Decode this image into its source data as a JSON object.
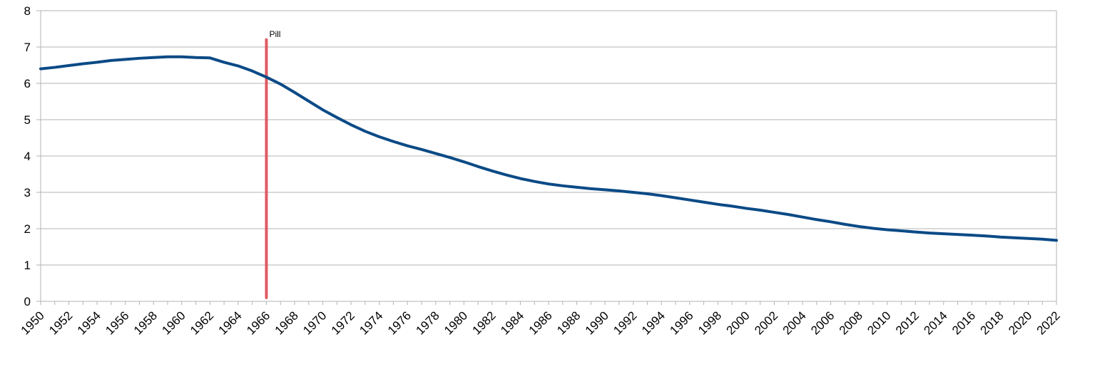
{
  "chart_data": {
    "type": "line",
    "title": "",
    "xlabel": "",
    "ylabel": "",
    "xlim": [
      1950,
      2022
    ],
    "ylim": [
      0,
      8
    ],
    "grid": true,
    "legend": "none",
    "x_tick_labels": [
      "1950",
      "1952",
      "1954",
      "1956",
      "1958",
      "1960",
      "1962",
      "1964",
      "1966",
      "1968",
      "1970",
      "1972",
      "1974",
      "1976",
      "1978",
      "1980",
      "1982",
      "1984",
      "1986",
      "1988",
      "1990",
      "1992",
      "1994",
      "1996",
      "1998",
      "2000",
      "2002",
      "2004",
      "2006",
      "2008",
      "2010",
      "2012",
      "2014",
      "2016",
      "2018",
      "2020",
      "2022"
    ],
    "y_tick_labels": [
      "0",
      "1",
      "2",
      "3",
      "4",
      "5",
      "6",
      "7",
      "8"
    ],
    "series": [
      {
        "color": "#0b4a86",
        "x": [
          1950,
          1951,
          1952,
          1953,
          1954,
          1955,
          1956,
          1957,
          1958,
          1959,
          1960,
          1961,
          1962,
          1963,
          1964,
          1965,
          1966,
          1967,
          1968,
          1969,
          1970,
          1971,
          1972,
          1973,
          1974,
          1975,
          1976,
          1977,
          1978,
          1979,
          1980,
          1981,
          1982,
          1983,
          1984,
          1985,
          1986,
          1987,
          1988,
          1989,
          1990,
          1991,
          1992,
          1993,
          1994,
          1995,
          1996,
          1997,
          1998,
          1999,
          2000,
          2001,
          2002,
          2003,
          2004,
          2005,
          2006,
          2007,
          2008,
          2009,
          2010,
          2011,
          2012,
          2013,
          2014,
          2015,
          2016,
          2017,
          2018,
          2019,
          2020,
          2021,
          2022
        ],
        "values": [
          6.4,
          6.44,
          6.49,
          6.54,
          6.58,
          6.63,
          6.66,
          6.69,
          6.71,
          6.73,
          6.73,
          6.71,
          6.7,
          6.58,
          6.48,
          6.34,
          6.17,
          5.98,
          5.75,
          5.51,
          5.27,
          5.06,
          4.86,
          4.68,
          4.53,
          4.4,
          4.28,
          4.18,
          4.07,
          3.96,
          3.84,
          3.71,
          3.59,
          3.48,
          3.38,
          3.3,
          3.23,
          3.18,
          3.14,
          3.1,
          3.07,
          3.04,
          3.0,
          2.96,
          2.91,
          2.85,
          2.79,
          2.73,
          2.67,
          2.62,
          2.56,
          2.51,
          2.45,
          2.39,
          2.32,
          2.25,
          2.19,
          2.12,
          2.06,
          2.01,
          1.97,
          1.94,
          1.91,
          1.88,
          1.86,
          1.84,
          1.82,
          1.8,
          1.77,
          1.75,
          1.73,
          1.71,
          1.68
        ]
      }
    ],
    "annotations": [
      {
        "label": "Pill",
        "x": 1966,
        "y_from": 0.1,
        "y_to": 7.2,
        "color": "#e05a63"
      }
    ]
  }
}
